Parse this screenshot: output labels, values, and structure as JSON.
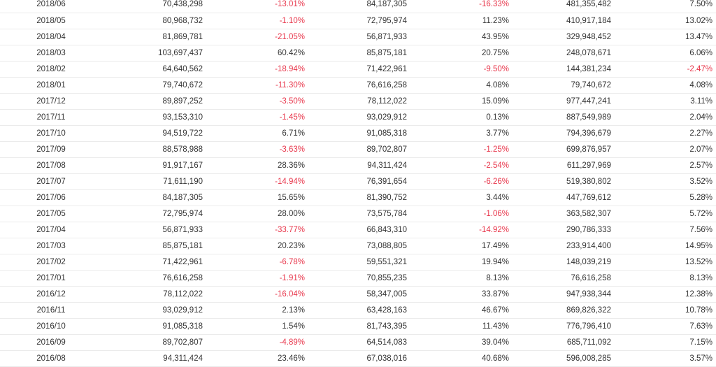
{
  "table": {
    "rows": [
      {
        "date": "2018/06",
        "v1": "70,438,298",
        "p1": "-13.01%",
        "v2": "84,187,305",
        "p2": "-16.33%",
        "v3": "481,355,482",
        "p3": "7.50%"
      },
      {
        "date": "2018/05",
        "v1": "80,968,732",
        "p1": "-1.10%",
        "v2": "72,795,974",
        "p2": "11.23%",
        "v3": "410,917,184",
        "p3": "13.02%"
      },
      {
        "date": "2018/04",
        "v1": "81,869,781",
        "p1": "-21.05%",
        "v2": "56,871,933",
        "p2": "43.95%",
        "v3": "329,948,452",
        "p3": "13.47%"
      },
      {
        "date": "2018/03",
        "v1": "103,697,437",
        "p1": "60.42%",
        "v2": "85,875,181",
        "p2": "20.75%",
        "v3": "248,078,671",
        "p3": "6.06%"
      },
      {
        "date": "2018/02",
        "v1": "64,640,562",
        "p1": "-18.94%",
        "v2": "71,422,961",
        "p2": "-9.50%",
        "v3": "144,381,234",
        "p3": "-2.47%"
      },
      {
        "date": "2018/01",
        "v1": "79,740,672",
        "p1": "-11.30%",
        "v2": "76,616,258",
        "p2": "4.08%",
        "v3": "79,740,672",
        "p3": "4.08%"
      },
      {
        "date": "2017/12",
        "v1": "89,897,252",
        "p1": "-3.50%",
        "v2": "78,112,022",
        "p2": "15.09%",
        "v3": "977,447,241",
        "p3": "3.11%"
      },
      {
        "date": "2017/11",
        "v1": "93,153,310",
        "p1": "-1.45%",
        "v2": "93,029,912",
        "p2": "0.13%",
        "v3": "887,549,989",
        "p3": "2.04%"
      },
      {
        "date": "2017/10",
        "v1": "94,519,722",
        "p1": "6.71%",
        "v2": "91,085,318",
        "p2": "3.77%",
        "v3": "794,396,679",
        "p3": "2.27%"
      },
      {
        "date": "2017/09",
        "v1": "88,578,988",
        "p1": "-3.63%",
        "v2": "89,702,807",
        "p2": "-1.25%",
        "v3": "699,876,957",
        "p3": "2.07%"
      },
      {
        "date": "2017/08",
        "v1": "91,917,167",
        "p1": "28.36%",
        "v2": "94,311,424",
        "p2": "-2.54%",
        "v3": "611,297,969",
        "p3": "2.57%"
      },
      {
        "date": "2017/07",
        "v1": "71,611,190",
        "p1": "-14.94%",
        "v2": "76,391,654",
        "p2": "-6.26%",
        "v3": "519,380,802",
        "p3": "3.52%"
      },
      {
        "date": "2017/06",
        "v1": "84,187,305",
        "p1": "15.65%",
        "v2": "81,390,752",
        "p2": "3.44%",
        "v3": "447,769,612",
        "p3": "5.28%"
      },
      {
        "date": "2017/05",
        "v1": "72,795,974",
        "p1": "28.00%",
        "v2": "73,575,784",
        "p2": "-1.06%",
        "v3": "363,582,307",
        "p3": "5.72%"
      },
      {
        "date": "2017/04",
        "v1": "56,871,933",
        "p1": "-33.77%",
        "v2": "66,843,310",
        "p2": "-14.92%",
        "v3": "290,786,333",
        "p3": "7.56%"
      },
      {
        "date": "2017/03",
        "v1": "85,875,181",
        "p1": "20.23%",
        "v2": "73,088,805",
        "p2": "17.49%",
        "v3": "233,914,400",
        "p3": "14.95%"
      },
      {
        "date": "2017/02",
        "v1": "71,422,961",
        "p1": "-6.78%",
        "v2": "59,551,321",
        "p2": "19.94%",
        "v3": "148,039,219",
        "p3": "13.52%"
      },
      {
        "date": "2017/01",
        "v1": "76,616,258",
        "p1": "-1.91%",
        "v2": "70,855,235",
        "p2": "8.13%",
        "v3": "76,616,258",
        "p3": "8.13%"
      },
      {
        "date": "2016/12",
        "v1": "78,112,022",
        "p1": "-16.04%",
        "v2": "58,347,005",
        "p2": "33.87%",
        "v3": "947,938,344",
        "p3": "12.38%"
      },
      {
        "date": "2016/11",
        "v1": "93,029,912",
        "p1": "2.13%",
        "v2": "63,428,163",
        "p2": "46.67%",
        "v3": "869,826,322",
        "p3": "10.78%"
      },
      {
        "date": "2016/10",
        "v1": "91,085,318",
        "p1": "1.54%",
        "v2": "81,743,395",
        "p2": "11.43%",
        "v3": "776,796,410",
        "p3": "7.63%"
      },
      {
        "date": "2016/09",
        "v1": "89,702,807",
        "p1": "-4.89%",
        "v2": "64,514,083",
        "p2": "39.04%",
        "v3": "685,711,092",
        "p3": "7.15%"
      },
      {
        "date": "2016/08",
        "v1": "94,311,424",
        "p1": "23.46%",
        "v2": "67,038,016",
        "p2": "40.68%",
        "v3": "596,008,285",
        "p3": "3.57%"
      }
    ]
  }
}
